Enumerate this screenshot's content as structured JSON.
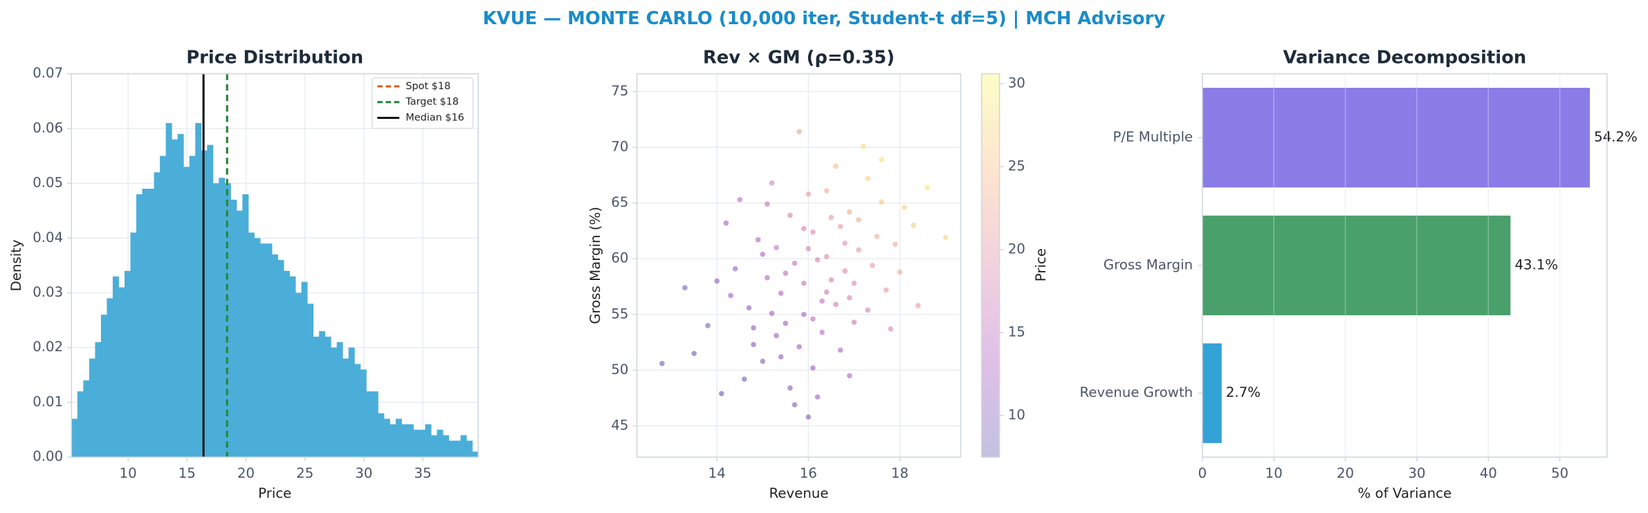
{
  "title": "KVUE — MONTE CARLO (10,000 iter, Student-t df=5) | MCH Advisory",
  "chart_data": [
    {
      "type": "histogram",
      "title": "Price Distribution",
      "x_label": "Price",
      "y_label": "Density",
      "color": "#4aaed9",
      "grid": true,
      "bins": [
        5.2,
        5.7,
        6.2,
        6.7,
        7.2,
        7.7,
        8.2,
        8.7,
        9.2,
        9.7,
        10.2,
        10.7,
        11.2,
        11.7,
        12.2,
        12.7,
        13.2,
        13.7,
        14.2,
        14.7,
        15.2,
        15.7,
        16.2,
        16.7,
        17.2,
        17.7,
        18.2,
        18.7,
        19.2,
        19.7,
        20.2,
        20.7,
        21.2,
        21.7,
        22.2,
        22.7,
        23.2,
        23.7,
        24.2,
        24.7,
        25.2,
        25.7,
        26.2,
        26.7,
        27.2,
        27.7,
        28.2,
        28.7,
        29.2,
        29.7,
        30.2,
        30.7,
        31.2,
        31.7,
        32.2,
        32.7,
        33.2,
        33.7,
        34.2,
        34.7,
        35.2,
        35.7,
        36.2,
        36.7,
        37.2,
        37.7,
        38.2,
        38.7,
        39.2,
        39.7
      ],
      "values": [
        0.007,
        0.012,
        0.014,
        0.018,
        0.021,
        0.026,
        0.029,
        0.033,
        0.031,
        0.034,
        0.041,
        0.048,
        0.049,
        0.049,
        0.052,
        0.055,
        0.061,
        0.058,
        0.059,
        0.053,
        0.055,
        0.061,
        0.056,
        0.057,
        0.05,
        0.051,
        0.05,
        0.047,
        0.045,
        0.048,
        0.041,
        0.04,
        0.039,
        0.039,
        0.037,
        0.036,
        0.034,
        0.033,
        0.03,
        0.032,
        0.028,
        0.022,
        0.023,
        0.022,
        0.02,
        0.021,
        0.018,
        0.02,
        0.017,
        0.016,
        0.012,
        0.012,
        0.008,
        0.007,
        0.006,
        0.007,
        0.006,
        0.006,
        0.005,
        0.005,
        0.006,
        0.004,
        0.005,
        0.004,
        0.003,
        0.003,
        0.004,
        0.003,
        0.001
      ],
      "xlim": [
        5.2,
        39.7
      ],
      "xticks": [
        10,
        15,
        20,
        25,
        30,
        35
      ],
      "ylim": [
        0,
        0.07
      ],
      "yticks": [
        {
          "value": 0,
          "label": "0.00"
        },
        {
          "value": 0.01,
          "label": "0.01"
        },
        {
          "value": 0.02,
          "label": "0.02"
        },
        {
          "value": 0.03,
          "label": "0.03"
        },
        {
          "value": 0.04,
          "label": "0.04"
        },
        {
          "value": 0.05,
          "label": "0.05"
        },
        {
          "value": 0.06,
          "label": "0.06"
        },
        {
          "value": 0.07,
          "label": "0.07"
        }
      ],
      "legend": "upper right",
      "vlines": [
        {
          "name": "Spot $18",
          "x": 18.4,
          "color": "#e8590c",
          "style": "dashed"
        },
        {
          "name": "Target $18",
          "x": 18.4,
          "color": "#1e8a3e",
          "style": "dashed"
        },
        {
          "name": "Median $16",
          "x": 16.4,
          "color": "#111111",
          "style": "solid"
        }
      ]
    },
    {
      "type": "scatter",
      "title": "Rev × GM (ρ=0.35)",
      "x_label": "Revenue",
      "y_label": "Gross Margin (%)",
      "grid": true,
      "cmap": "plasma",
      "alpha": 0.4,
      "x": [
        15.2,
        16.4,
        17.1,
        14.8,
        15.9,
        16.8,
        15.5,
        17.6,
        14.3,
        16.1,
        15.0,
        16.6,
        17.9,
        15.7,
        14.6,
        16.3,
        17.3,
        15.3,
        16.9,
        15.8,
        13.8,
        16.0,
        18.3,
        15.1,
        16.7,
        14.9,
        17.4,
        16.2,
        15.4,
        17.0,
        13.5,
        16.5,
        18.6,
        15.6,
        14.4,
        17.7,
        16.1,
        15.2,
        17.2,
        14.1,
        16.9,
        15.9,
        16.4,
        18.0,
        14.7,
        15.6,
        16.6,
        17.5,
        15.3,
        16.2,
        12.8,
        19.0,
        15.8,
        16.0,
        17.8,
        14.2,
        16.7,
        15.0,
        17.1,
        16.3,
        15.5,
        16.8,
        14.0,
        17.3,
        15.7,
        16.5,
        18.4,
        15.1,
        13.3,
        16.1,
        17.6,
        15.4,
        16.9,
        14.5,
        16.0,
        17.0,
        15.9,
        14.8,
        18.1,
        16.4
      ],
      "y": [
        55.1,
        60.2,
        63.5,
        52.3,
        57.8,
        58.9,
        54.2,
        65.1,
        56.7,
        62.4,
        50.8,
        55.9,
        61.3,
        59.6,
        49.2,
        53.4,
        67.2,
        61.0,
        56.5,
        52.1,
        54.0,
        65.8,
        63.0,
        58.3,
        62.9,
        61.7,
        59.4,
        47.6,
        56.9,
        54.3,
        51.5,
        58.1,
        66.4,
        63.9,
        59.1,
        57.2,
        50.2,
        66.8,
        70.1,
        47.9,
        64.2,
        55.0,
        57.0,
        58.8,
        55.6,
        48.4,
        68.3,
        62.0,
        53.1,
        59.9,
        50.6,
        61.9,
        71.4,
        45.8,
        53.7,
        63.2,
        51.8,
        60.4,
        60.8,
        56.2,
        58.7,
        61.4,
        58.0,
        55.4,
        46.9,
        63.7,
        55.8,
        64.9,
        57.4,
        54.6,
        68.9,
        51.2,
        49.5,
        65.3,
        60.9,
        57.8,
        62.7,
        53.8,
        64.6,
        66.1
      ],
      "c": [
        13,
        19,
        23,
        10,
        16,
        19,
        13,
        26,
        12,
        19,
        10,
        17,
        23,
        16,
        9,
        15,
        27,
        16,
        18,
        13,
        10,
        21,
        26,
        14,
        21,
        14,
        21,
        12,
        14,
        17,
        8,
        18,
        29,
        18,
        12,
        21,
        12,
        18,
        28,
        8,
        23,
        14,
        17,
        23,
        11,
        10,
        25,
        23,
        12,
        18,
        7.8,
        27,
        22,
        10,
        19,
        13,
        14,
        14,
        21,
        16,
        15,
        20,
        11,
        18,
        10,
        21,
        21,
        16,
        9.5,
        15,
        28,
        11,
        14,
        15,
        18,
        19,
        18,
        11,
        27,
        23
      ],
      "xlim": [
        12.25,
        19.33
      ],
      "xticks": [
        14,
        16,
        18
      ],
      "ylim": [
        42.2,
        76.6
      ],
      "yticks": [
        45,
        50,
        55,
        60,
        65,
        70,
        75
      ],
      "colorbar": {
        "label": "Price",
        "lim": [
          7.5,
          30.6
        ],
        "ticks": [
          10,
          15,
          20,
          25,
          30
        ]
      }
    },
    {
      "type": "barh",
      "title": "Variance Decomposition",
      "x_label": "% of Variance",
      "grid": true,
      "categories": [
        "Revenue Growth",
        "Gross Margin",
        "P/E Multiple"
      ],
      "values": [
        2.7,
        43.1,
        54.2
      ],
      "value_labels": [
        "2.7%",
        "43.1%",
        "54.2%"
      ],
      "colors": [
        "#33a2d6",
        "#4aa06b",
        "#8a7de8"
      ],
      "xlim": [
        0,
        56.6
      ],
      "xticks": [
        0,
        10,
        20,
        30,
        40,
        50
      ]
    }
  ]
}
